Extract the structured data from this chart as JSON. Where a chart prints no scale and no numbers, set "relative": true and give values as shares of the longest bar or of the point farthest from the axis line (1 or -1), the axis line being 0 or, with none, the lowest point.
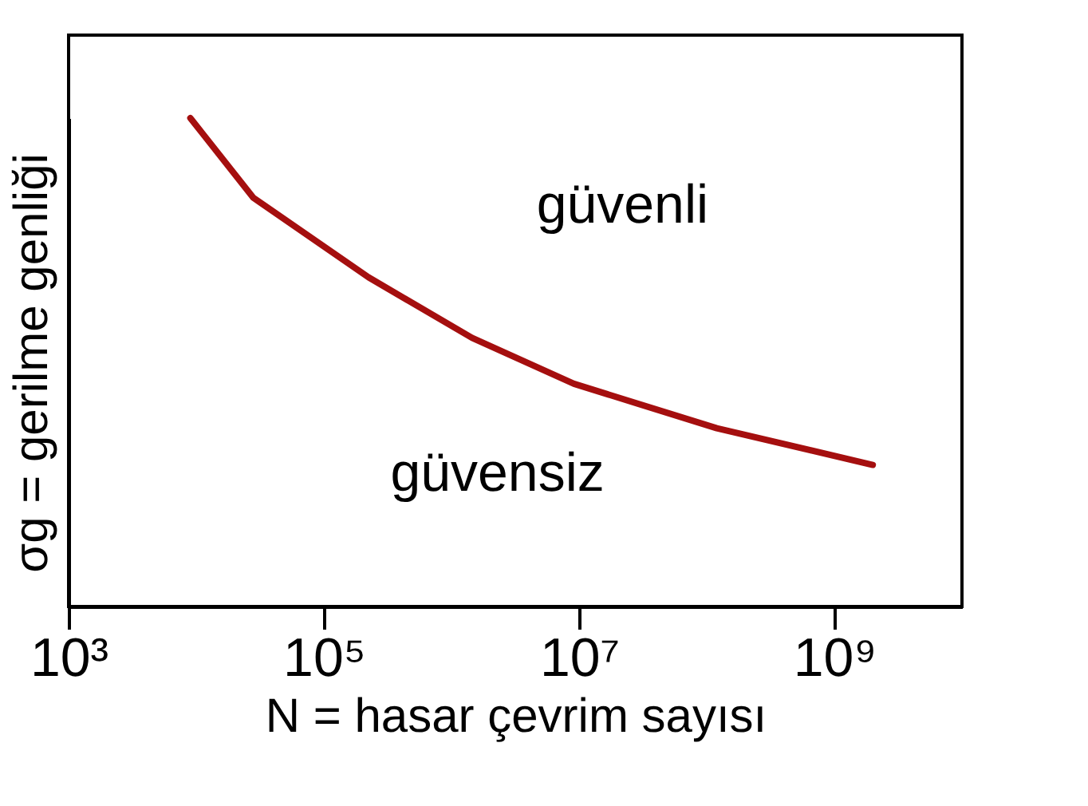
{
  "chart_data": {
    "type": "line",
    "relative": true,
    "xlabel": "N = hasar çevrim sayısı",
    "ylabel": "σg = gerilme genliği",
    "log": "x",
    "xlim": [
      1000,
      10000000000
    ],
    "xticks": [
      {
        "value": 1000,
        "label": "10³"
      },
      {
        "value": 100000,
        "label": "10⁵"
      },
      {
        "value": 10000000,
        "label": "10⁷"
      },
      {
        "value": 1000000000,
        "label": "10⁹"
      }
    ],
    "tick_labels": "x",
    "grid": false,
    "marker": "none",
    "line_style": "solid",
    "series": [
      {
        "color": "#a50f0f",
        "x": [
          9000,
          28000,
          224000,
          1450000,
          9100000,
          120000000,
          2000000000
        ],
        "values": [
          1,
          0.837,
          0.674,
          0.55,
          0.456,
          0.365,
          0.29
        ]
      }
    ],
    "annotations": [
      "güvenli",
      "güvensiz"
    ]
  }
}
